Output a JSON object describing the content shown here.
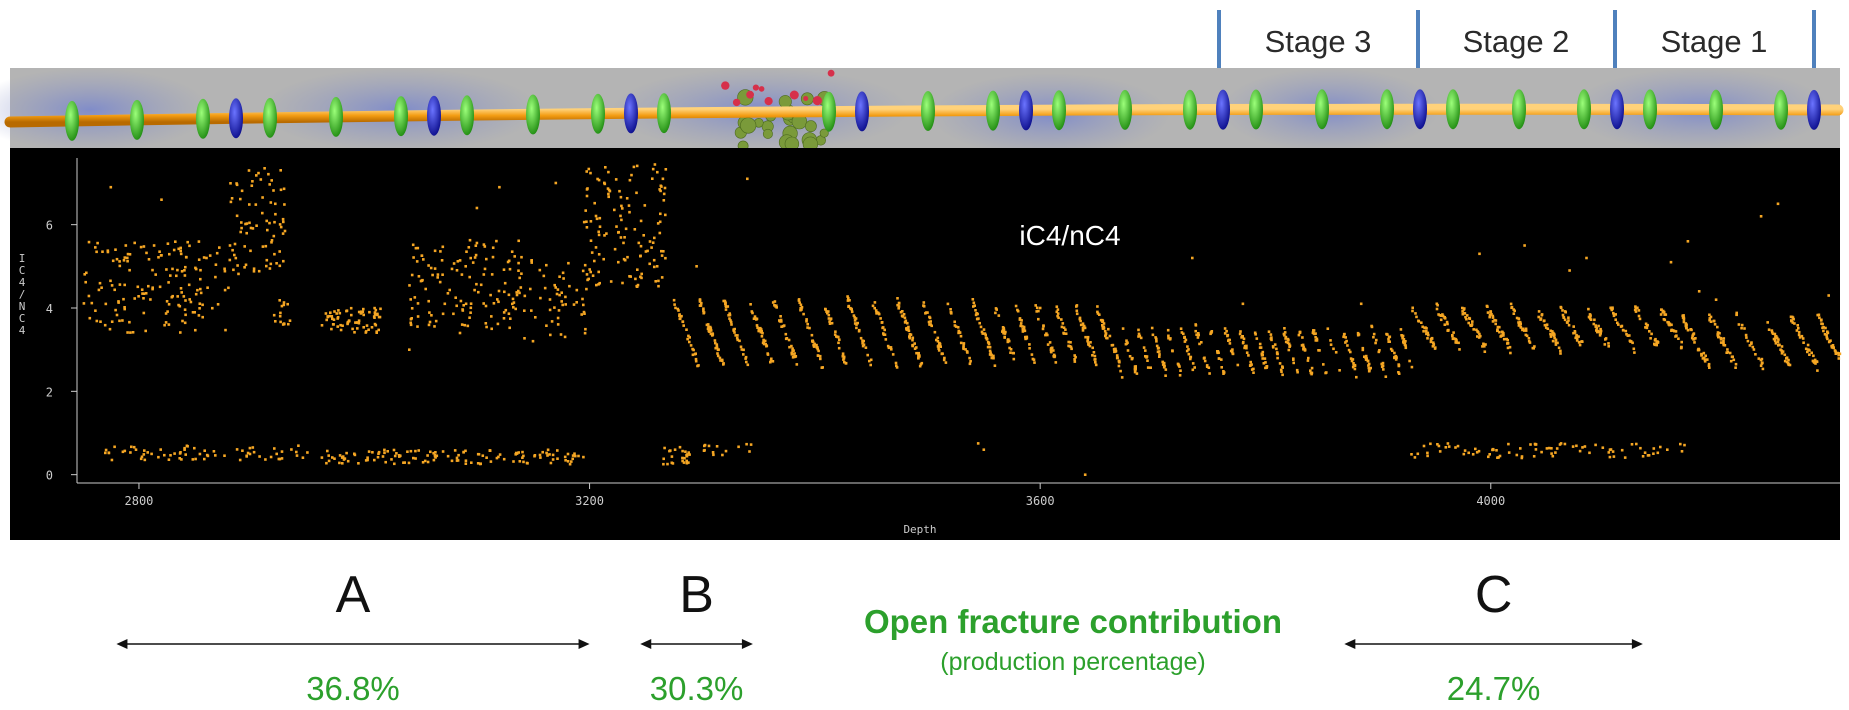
{
  "stages": {
    "labels": [
      "Stage 3",
      "Stage 2",
      "Stage 1"
    ],
    "marker_color": "#4f81bd"
  },
  "chart_data": {
    "type": "scatter",
    "title": "iC4/nC4",
    "xlabel": "Depth",
    "ylabel": "IC4/NC4",
    "xlim": [
      2745,
      4310
    ],
    "ylim": [
      -0.2,
      7.6
    ],
    "x_ticks": [
      2800,
      3200,
      3600,
      4000
    ],
    "y_ticks": [
      0,
      2,
      4,
      6
    ],
    "grid": false,
    "point_color": "#f5a623",
    "background": "#000000",
    "series": [
      {
        "clusters": [
          {
            "x0": 2750,
            "x1": 2880,
            "mode": "band",
            "ylo": 3.4,
            "yhi": 5.6,
            "n": 160
          },
          {
            "x0": 2880,
            "x1": 2930,
            "mode": "band",
            "ylo": 4.8,
            "yhi": 7.4,
            "n": 80
          },
          {
            "x0": 2920,
            "x1": 2935,
            "mode": "band",
            "ylo": 3.6,
            "yhi": 4.2,
            "n": 15
          },
          {
            "x0": 2962,
            "x1": 3015,
            "mode": "band",
            "ylo": 3.4,
            "yhi": 4.0,
            "n": 70
          },
          {
            "x0": 3040,
            "x1": 3140,
            "mode": "band",
            "ylo": 3.5,
            "yhi": 5.7,
            "n": 130
          },
          {
            "x0": 3135,
            "x1": 3200,
            "mode": "band",
            "ylo": 3.2,
            "yhi": 5.2,
            "n": 60
          },
          {
            "x0": 3195,
            "x1": 3270,
            "mode": "band",
            "ylo": 4.5,
            "yhi": 7.5,
            "n": 130
          },
          {
            "x0": 3275,
            "x1": 3560,
            "mode": "saw",
            "ylo": 2.6,
            "yhi": 4.2,
            "period": 22,
            "n": 430
          },
          {
            "x0": 3560,
            "x1": 3660,
            "mode": "saw",
            "ylo": 2.7,
            "yhi": 4.0,
            "period": 18,
            "n": 150
          },
          {
            "x0": 3660,
            "x1": 3930,
            "mode": "saw",
            "ylo": 2.4,
            "yhi": 3.5,
            "period": 13,
            "n": 360
          },
          {
            "x0": 3930,
            "x1": 4170,
            "mode": "saw",
            "ylo": 3.0,
            "yhi": 4.0,
            "period": 22,
            "n": 320
          },
          {
            "x0": 4170,
            "x1": 4310,
            "mode": "saw",
            "ylo": 2.6,
            "yhi": 3.8,
            "period": 24,
            "n": 200
          },
          {
            "x0": 2770,
            "x1": 2950,
            "mode": "band",
            "ylo": 0.35,
            "yhi": 0.7,
            "n": 70
          },
          {
            "x0": 2960,
            "x1": 3195,
            "mode": "band",
            "ylo": 0.25,
            "yhi": 0.6,
            "n": 130
          },
          {
            "x0": 3265,
            "x1": 3290,
            "mode": "band",
            "ylo": 0.25,
            "yhi": 0.7,
            "n": 25
          },
          {
            "x0": 3300,
            "x1": 3345,
            "mode": "band",
            "ylo": 0.45,
            "yhi": 0.75,
            "n": 14
          },
          {
            "x0": 3928,
            "x1": 4175,
            "mode": "band",
            "ylo": 0.4,
            "yhi": 0.75,
            "n": 85
          }
        ],
        "outliers": [
          [
            2775,
            6.9
          ],
          [
            2820,
            6.6
          ],
          [
            2860,
            5.2
          ],
          [
            3040,
            3.0
          ],
          [
            3085,
            3.4
          ],
          [
            3100,
            6.4
          ],
          [
            3120,
            6.9
          ],
          [
            3170,
            7.0
          ],
          [
            3260,
            5.0
          ],
          [
            3340,
            7.1
          ],
          [
            3295,
            5.0
          ],
          [
            3545,
            0.75
          ],
          [
            3550,
            0.6
          ],
          [
            3640,
            0.0
          ],
          [
            3600,
            4.0
          ],
          [
            3735,
            5.2
          ],
          [
            3780,
            4.1
          ],
          [
            3885,
            4.1
          ],
          [
            3990,
            5.3
          ],
          [
            4030,
            5.5
          ],
          [
            4070,
            4.9
          ],
          [
            4085,
            5.2
          ],
          [
            4160,
            5.1
          ],
          [
            4175,
            5.6
          ],
          [
            4185,
            4.4
          ],
          [
            4240,
            6.2
          ],
          [
            4255,
            6.5
          ],
          [
            4300,
            4.3
          ],
          [
            4200,
            4.2
          ]
        ]
      }
    ]
  },
  "intervals": [
    {
      "label": "A",
      "value": "36.8%",
      "x0": 2780,
      "x1": 3200
    },
    {
      "label": "B",
      "value": "30.3%",
      "x0": 3245,
      "x1": 3345
    },
    {
      "label": "C",
      "value": "24.7%",
      "x0": 3870,
      "x1": 4135
    }
  ],
  "annotation": {
    "title": "Open fracture contribution",
    "subtitle": "(production percentage)",
    "color": "#2ca02c"
  }
}
